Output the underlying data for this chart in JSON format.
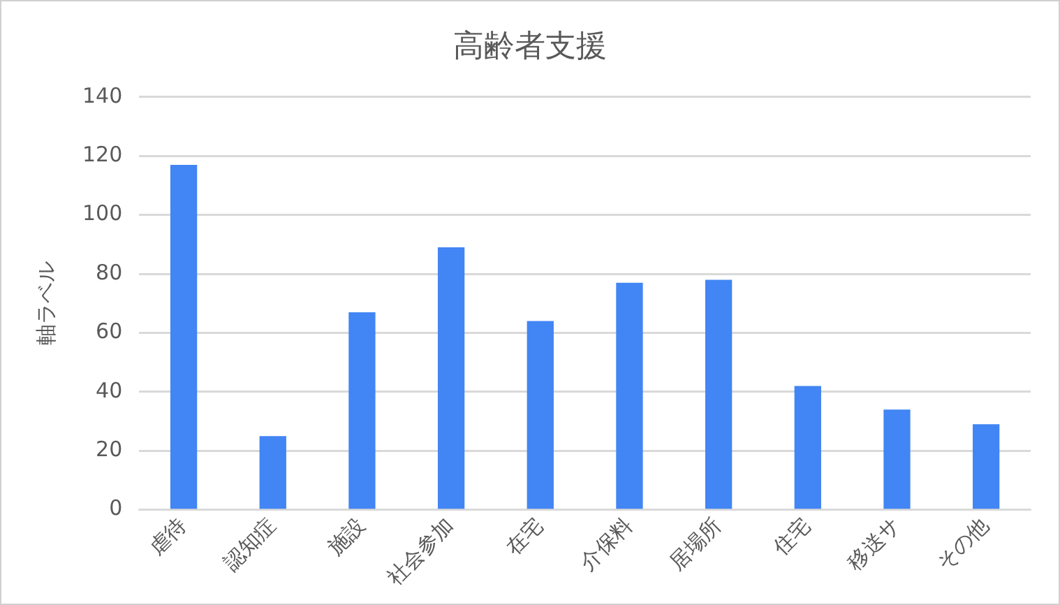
{
  "chart_data": {
    "type": "bar",
    "title": "高齢者支援",
    "ylabel": "軸ラベル",
    "categories": [
      "虐待",
      "認知症",
      "施設",
      "社会参加",
      "在宅",
      "介保料",
      "居場所",
      "住宅",
      "移送サ",
      "その他"
    ],
    "values": [
      117,
      25,
      67,
      89,
      64,
      77,
      78,
      42,
      34,
      29
    ],
    "color": "#4285f4",
    "ylim": [
      0,
      140
    ],
    "yticks": [
      0,
      20,
      40,
      60,
      80,
      100,
      120,
      140
    ],
    "grid": "y",
    "legend": false
  }
}
